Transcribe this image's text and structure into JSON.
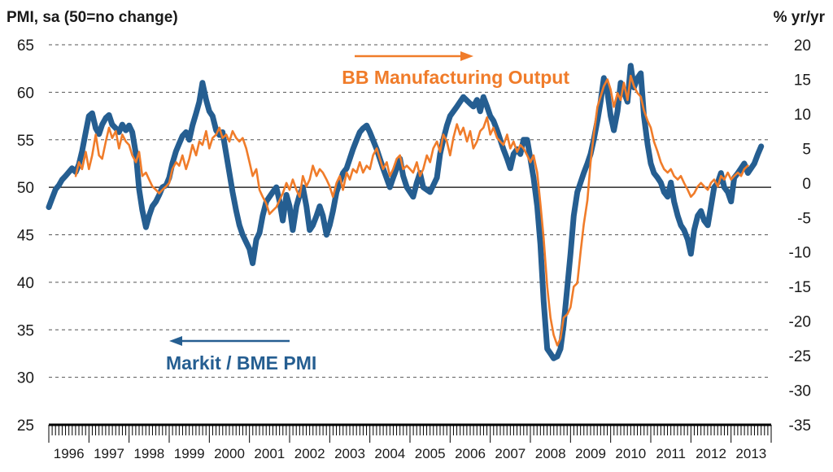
{
  "chart_data": {
    "type": "line",
    "left_axis_title": "PMI, sa (50=no change)",
    "right_axis_title": "% yr/yr",
    "left_axis": {
      "ticks": [
        25,
        30,
        35,
        40,
        45,
        50,
        55,
        60,
        65
      ],
      "range": [
        25,
        65
      ],
      "reference_line": 50
    },
    "right_axis": {
      "ticks": [
        -35,
        -30,
        -25,
        -20,
        -15,
        -10,
        -5,
        0,
        5,
        10,
        15,
        20
      ],
      "range": [
        -35,
        20
      ]
    },
    "x_axis": {
      "range": [
        1996.0,
        2014.0
      ],
      "tick_labels": [
        "1996",
        "1997",
        "1998",
        "1999",
        "2000",
        "2001",
        "2002",
        "2003",
        "2004",
        "2005",
        "2006",
        "2007",
        "2008",
        "2009",
        "2010",
        "2011",
        "2012",
        "2013"
      ]
    },
    "grid": "horizontal dashed",
    "series": [
      {
        "name": "Markit / BME PMI",
        "axis": "left",
        "color": "#255e91",
        "x": [
          1996.0,
          1996.08,
          1996.17,
          1996.25,
          1996.33,
          1996.42,
          1996.5,
          1996.58,
          1996.67,
          1996.75,
          1996.83,
          1996.92,
          1997.0,
          1997.08,
          1997.17,
          1997.25,
          1997.33,
          1997.42,
          1997.5,
          1997.58,
          1997.67,
          1997.75,
          1997.83,
          1997.92,
          1998.0,
          1998.08,
          1998.17,
          1998.25,
          1998.33,
          1998.42,
          1998.5,
          1998.58,
          1998.67,
          1998.75,
          1998.83,
          1998.92,
          1999.0,
          1999.08,
          1999.17,
          1999.25,
          1999.33,
          1999.42,
          1999.5,
          1999.58,
          1999.67,
          1999.75,
          1999.83,
          1999.92,
          2000.0,
          2000.08,
          2000.17,
          2000.25,
          2000.33,
          2000.42,
          2000.5,
          2000.58,
          2000.67,
          2000.75,
          2000.83,
          2000.92,
          2001.0,
          2001.08,
          2001.17,
          2001.25,
          2001.33,
          2001.42,
          2001.5,
          2001.58,
          2001.67,
          2001.75,
          2001.83,
          2001.92,
          2002.0,
          2002.08,
          2002.17,
          2002.25,
          2002.33,
          2002.42,
          2002.5,
          2002.58,
          2002.67,
          2002.75,
          2002.83,
          2002.92,
          2003.0,
          2003.08,
          2003.17,
          2003.25,
          2003.33,
          2003.42,
          2003.5,
          2003.58,
          2003.67,
          2003.75,
          2003.83,
          2003.92,
          2004.0,
          2004.17,
          2004.33,
          2004.5,
          2004.58,
          2004.67,
          2004.75,
          2004.83,
          2004.92,
          2005.0,
          2005.08,
          2005.17,
          2005.25,
          2005.33,
          2005.5,
          2005.67,
          2005.75,
          2005.83,
          2005.92,
          2006.0,
          2006.17,
          2006.33,
          2006.5,
          2006.58,
          2006.67,
          2006.75,
          2006.83,
          2006.92,
          2007.0,
          2007.08,
          2007.17,
          2007.25,
          2007.33,
          2007.42,
          2007.5,
          2007.58,
          2007.67,
          2007.75,
          2007.83,
          2007.92,
          2008.0,
          2008.08,
          2008.17,
          2008.25,
          2008.33,
          2008.42,
          2008.5,
          2008.58,
          2008.67,
          2008.75,
          2008.83,
          2008.92,
          2009.0,
          2009.08,
          2009.17,
          2009.25,
          2009.33,
          2009.42,
          2009.5,
          2009.58,
          2009.67,
          2009.75,
          2009.83,
          2009.92,
          2010.0,
          2010.08,
          2010.17,
          2010.25,
          2010.33,
          2010.42,
          2010.5,
          2010.58,
          2010.67,
          2010.75,
          2010.83,
          2010.92,
          2011.0,
          2011.08,
          2011.17,
          2011.25,
          2011.33,
          2011.42,
          2011.5,
          2011.58,
          2011.67,
          2011.75,
          2011.83,
          2011.92,
          2012.0,
          2012.08,
          2012.17,
          2012.25,
          2012.33,
          2012.42,
          2012.5,
          2012.58,
          2012.67,
          2012.75,
          2012.83,
          2012.92,
          2013.0,
          2013.08,
          2013.17,
          2013.25,
          2013.33,
          2013.42,
          2013.5,
          2013.58,
          2013.67,
          2013.75
        ],
        "values": [
          47.9,
          48.8,
          49.8,
          50.2,
          50.8,
          51.2,
          51.6,
          52.0,
          51.6,
          52.4,
          53.8,
          55.8,
          57.5,
          57.8,
          56.2,
          55.6,
          56.6,
          57.3,
          57.6,
          56.6,
          56.2,
          55.8,
          56.6,
          56.0,
          56.5,
          55.8,
          53.5,
          49.8,
          47.6,
          45.8,
          47.0,
          48.0,
          48.5,
          49.2,
          50.0,
          50.2,
          51.0,
          52.5,
          53.8,
          54.6,
          55.4,
          55.8,
          55.0,
          56.5,
          57.8,
          59.0,
          61.0,
          59.2,
          58.0,
          57.5,
          56.0,
          55.5,
          55.8,
          53.5,
          51.5,
          49.5,
          47.5,
          46.0,
          45.0,
          44.2,
          43.5,
          42.0,
          44.5,
          45.2,
          47.0,
          48.5,
          49.0,
          49.5,
          50.0,
          48.5,
          46.5,
          49.2,
          48.0,
          45.5,
          48.0,
          49.2,
          50.0,
          48.0,
          45.5,
          46.0,
          47.0,
          48.0,
          47.0,
          45.0,
          46.0,
          47.5,
          49.5,
          50.5,
          51.5,
          52.0,
          53.0,
          54.0,
          55.0,
          55.8,
          56.2,
          56.5,
          55.8,
          54.0,
          52.0,
          50.0,
          51.0,
          52.0,
          53.0,
          51.2,
          50.0,
          49.5,
          49.0,
          50.5,
          51.5,
          50.0,
          49.5,
          51.0,
          53.5,
          55.0,
          56.5,
          57.5,
          58.5,
          59.5,
          58.8,
          58.5,
          59.2,
          58.0,
          59.5,
          58.5,
          57.5,
          57.0,
          56.0,
          55.0,
          54.0,
          53.0,
          52.0,
          53.5,
          54.0,
          53.5,
          55.0,
          55.0,
          53.0,
          51.0,
          48.0,
          44.0,
          38.0,
          33.0,
          32.5,
          32.0,
          32.2,
          33.0,
          35.5,
          39.5,
          43.0,
          47.0,
          49.5,
          50.5,
          51.5,
          52.5,
          53.5,
          55.0,
          57.0,
          59.0,
          61.5,
          60.0,
          57.5,
          56.0,
          58.0,
          61.0,
          60.0,
          59.0,
          62.8,
          60.5,
          61.5,
          62.0,
          57.5,
          54.5,
          52.5,
          51.5,
          51.0,
          50.5,
          49.5,
          49.0,
          50.5,
          48.5,
          47.0,
          46.0,
          45.5,
          44.5,
          43.0,
          45.5,
          47.0,
          47.5,
          46.5,
          46.0,
          48.0,
          50.0,
          50.5,
          51.5,
          50.0,
          49.5,
          48.5,
          51.0,
          51.5,
          52.0,
          52.5,
          51.5,
          52.0,
          52.5,
          53.5,
          54.3
        ]
      },
      {
        "name": "BB Manufacturing Output",
        "axis": "right",
        "color": "#f07c2a",
        "x": [
          1996.67,
          1996.75,
          1996.83,
          1996.92,
          1997.0,
          1997.08,
          1997.17,
          1997.25,
          1997.33,
          1997.42,
          1997.5,
          1997.58,
          1997.67,
          1997.75,
          1997.83,
          1997.92,
          1998.0,
          1998.08,
          1998.17,
          1998.25,
          1998.33,
          1998.42,
          1998.5,
          1998.58,
          1998.67,
          1998.75,
          1998.83,
          1998.92,
          1999.0,
          1999.08,
          1999.17,
          1999.25,
          1999.33,
          1999.42,
          1999.5,
          1999.58,
          1999.67,
          1999.75,
          1999.83,
          1999.92,
          2000.0,
          2000.08,
          2000.17,
          2000.25,
          2000.33,
          2000.42,
          2000.5,
          2000.58,
          2000.67,
          2000.75,
          2000.83,
          2000.92,
          2001.0,
          2001.08,
          2001.17,
          2001.25,
          2001.33,
          2001.42,
          2001.5,
          2001.58,
          2001.67,
          2001.75,
          2001.83,
          2001.92,
          2002.0,
          2002.08,
          2002.17,
          2002.25,
          2002.33,
          2002.42,
          2002.5,
          2002.58,
          2002.67,
          2002.75,
          2002.83,
          2002.92,
          2003.0,
          2003.08,
          2003.17,
          2003.25,
          2003.33,
          2003.42,
          2003.5,
          2003.58,
          2003.67,
          2003.75,
          2003.83,
          2003.92,
          2004.0,
          2004.08,
          2004.17,
          2004.25,
          2004.33,
          2004.42,
          2004.5,
          2004.58,
          2004.67,
          2004.75,
          2004.83,
          2004.92,
          2005.0,
          2005.08,
          2005.17,
          2005.25,
          2005.33,
          2005.42,
          2005.5,
          2005.58,
          2005.67,
          2005.75,
          2005.83,
          2005.92,
          2006.0,
          2006.08,
          2006.17,
          2006.25,
          2006.33,
          2006.42,
          2006.5,
          2006.58,
          2006.67,
          2006.75,
          2006.83,
          2006.92,
          2007.0,
          2007.08,
          2007.17,
          2007.25,
          2007.33,
          2007.42,
          2007.5,
          2007.58,
          2007.67,
          2007.75,
          2007.83,
          2007.92,
          2008.0,
          2008.08,
          2008.17,
          2008.25,
          2008.33,
          2008.42,
          2008.5,
          2008.58,
          2008.67,
          2008.75,
          2008.83,
          2008.92,
          2009.0,
          2009.08,
          2009.17,
          2009.25,
          2009.33,
          2009.42,
          2009.5,
          2009.58,
          2009.67,
          2009.75,
          2009.83,
          2009.92,
          2010.0,
          2010.08,
          2010.17,
          2010.25,
          2010.33,
          2010.42,
          2010.5,
          2010.58,
          2010.67,
          2010.75,
          2010.83,
          2010.92,
          2011.0,
          2011.08,
          2011.17,
          2011.25,
          2011.33,
          2011.42,
          2011.5,
          2011.58,
          2011.67,
          2011.75,
          2011.83,
          2011.92,
          2012.0,
          2012.08,
          2012.17,
          2012.25,
          2012.33,
          2012.42,
          2012.5,
          2012.58,
          2012.67,
          2012.75,
          2012.83,
          2012.92,
          2013.0,
          2013.08,
          2013.17,
          2013.25,
          2013.33,
          2013.42
        ],
        "values": [
          1.0,
          3.0,
          2.0,
          4.5,
          2.0,
          4.0,
          7.0,
          4.0,
          3.5,
          6.0,
          8.0,
          6.5,
          7.5,
          5.0,
          7.0,
          6.0,
          5.5,
          4.0,
          3.0,
          4.5,
          1.0,
          1.5,
          0.5,
          -0.5,
          -1.0,
          -1.5,
          -1.0,
          -0.5,
          0.0,
          2.0,
          3.0,
          2.5,
          4.0,
          2.0,
          3.5,
          5.5,
          4.0,
          6.0,
          5.5,
          7.5,
          5.0,
          6.5,
          7.0,
          8.0,
          6.5,
          7.0,
          6.0,
          7.5,
          6.5,
          6.0,
          6.5,
          5.0,
          3.0,
          1.0,
          2.0,
          -1.0,
          -2.0,
          -3.0,
          -4.5,
          -4.0,
          -3.5,
          -2.5,
          -1.5,
          0.0,
          -1.0,
          0.5,
          -1.0,
          -2.0,
          1.0,
          -0.5,
          0.5,
          2.5,
          1.0,
          2.0,
          1.5,
          0.5,
          -0.5,
          -2.0,
          0.0,
          1.0,
          -1.0,
          1.5,
          0.5,
          2.0,
          1.5,
          3.0,
          1.5,
          2.5,
          2.0,
          4.0,
          5.0,
          3.5,
          2.0,
          3.0,
          1.0,
          2.0,
          3.5,
          4.0,
          2.0,
          2.5,
          2.0,
          1.5,
          3.0,
          1.0,
          2.0,
          4.0,
          3.0,
          5.0,
          6.0,
          4.5,
          7.0,
          6.0,
          4.0,
          6.5,
          8.5,
          7.0,
          8.0,
          6.0,
          7.5,
          5.0,
          6.0,
          7.5,
          8.0,
          9.5,
          7.0,
          8.0,
          6.5,
          6.0,
          5.5,
          7.0,
          5.0,
          6.0,
          4.5,
          5.5,
          5.0,
          4.0,
          3.0,
          4.0,
          1.5,
          -3.0,
          -8.0,
          -15.0,
          -19.5,
          -22.0,
          -23.5,
          -22.5,
          -19.5,
          -19.0,
          -18.0,
          -15.0,
          -14.5,
          -10.0,
          -6.0,
          -2.5,
          3.0,
          7.0,
          11.0,
          12.5,
          14.0,
          15.0,
          13.5,
          11.0,
          13.0,
          12.0,
          14.5,
          12.0,
          15.5,
          14.0,
          13.0,
          12.5,
          10.5,
          9.0,
          8.0,
          6.0,
          4.5,
          3.0,
          2.0,
          1.5,
          2.0,
          1.0,
          0.5,
          1.0,
          0.0,
          -1.0,
          -2.0,
          -1.5,
          -0.5,
          0.0,
          -0.5,
          -1.0,
          0.0,
          0.5,
          -0.5,
          1.0,
          0.5,
          1.5,
          0.5,
          1.0,
          1.5,
          1.0,
          2.0,
          2.5
        ]
      }
    ],
    "annotations": [
      {
        "text": "BB Manufacturing Output",
        "color": "#f07c2a",
        "arrow": "right"
      },
      {
        "text": "Markit / BME PMI",
        "color": "#255e91",
        "arrow": "left"
      }
    ]
  }
}
